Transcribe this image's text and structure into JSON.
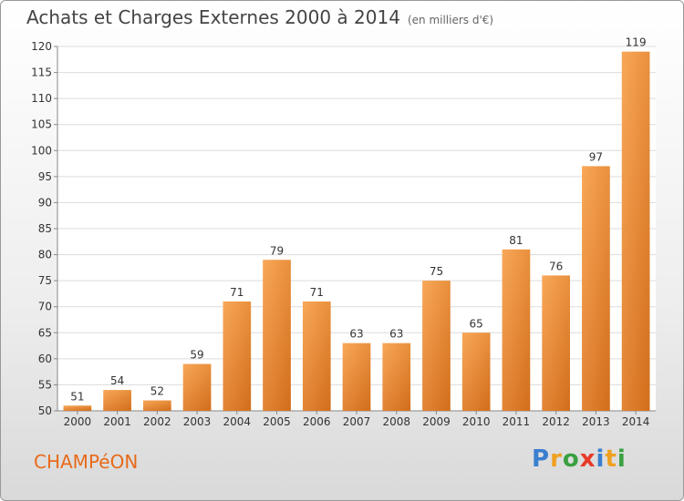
{
  "header": {
    "title": "Achats et Charges Externes 2000 à 2014",
    "subtitle": "(en milliers d'€)"
  },
  "footer": {
    "commune": "CHAMPéON",
    "brand": "Proxiti",
    "brand_letters": [
      {
        "ch": "P",
        "color": "#3a7fd0"
      },
      {
        "ch": "r",
        "color": "#f0a020"
      },
      {
        "ch": "o",
        "color": "#3aa040"
      },
      {
        "ch": "x",
        "color": "#e83a2a"
      },
      {
        "ch": "i",
        "color": "#3a7fd0"
      },
      {
        "ch": "t",
        "color": "#f0a020"
      },
      {
        "ch": "i",
        "color": "#3aa040"
      }
    ]
  },
  "chart_data": {
    "type": "bar",
    "categories": [
      "2000",
      "2001",
      "2002",
      "2003",
      "2004",
      "2005",
      "2006",
      "2007",
      "2008",
      "2009",
      "2010",
      "2011",
      "2012",
      "2013",
      "2014"
    ],
    "values": [
      51,
      54,
      52,
      59,
      71,
      79,
      71,
      63,
      63,
      75,
      65,
      81,
      76,
      97,
      119
    ],
    "title": "Achats et Charges Externes 2000 à 2014",
    "subtitle": "(en milliers d'€)",
    "xlabel": "",
    "ylabel": "",
    "ylim": [
      50,
      120
    ],
    "yticks": [
      50,
      55,
      60,
      65,
      70,
      75,
      80,
      85,
      90,
      95,
      100,
      105,
      110,
      115,
      120
    ],
    "grid": true,
    "legend": "none",
    "bar_color_light": "#f7a65a",
    "bar_color_dark": "#d4711c",
    "data_labels": true
  }
}
